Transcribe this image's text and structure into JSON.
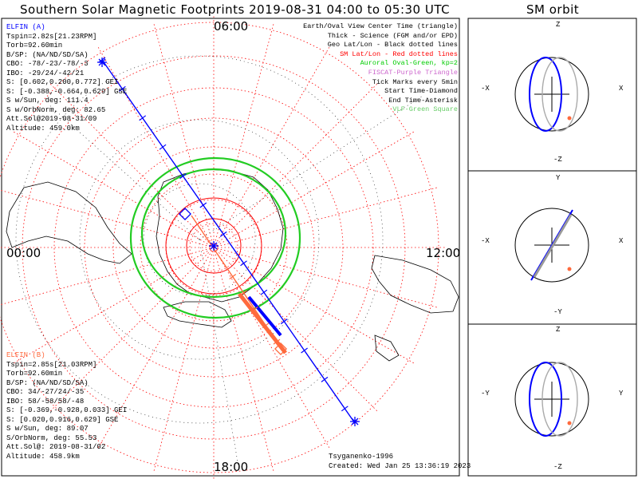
{
  "title": "Southern Solar Magnetic Footprints 2019-08-31 04:00 to 05:30 UTC",
  "orbit_title": "SM orbit",
  "hours": {
    "top": "06:00",
    "left": "00:00",
    "right": "12:00",
    "bottom": "18:00"
  },
  "elfin_a": {
    "name": "ELFIN (A)",
    "color": "#0000ff",
    "lines": [
      "Tspin=2.82s[21.23RPM]",
      "Torb=92.60min",
      "B/SP: (NA/ND/SD/SA)",
      "CBO: -78/-23/-78/-3",
      "IBO: -29/24/-42/21",
      "S: [0.602,0.200,0.772] GEI",
      "S: [-0.388,-0.664,0.629] GSE",
      "S w/Sun, deg: 111.4",
      "S w/OrbNorm, deg: 82.65",
      "Att.Sol@2019-08-31/09",
      "Altitude: 459.0km"
    ]
  },
  "elfin_b": {
    "name": "ELFIN (B)",
    "color": "#ff6a3d",
    "lines": [
      "Tspin=2.85s[21.03RPM]",
      "Torb=92.60min",
      "B/SP: (NA/ND/SD/SA)",
      "CBO: 34/-27/24/-35",
      "IBO: 58/-58/58/-48",
      "S: [-0.369,-0.928,0.033] GEI",
      "S: [0.020,0.916,0.629] GSE",
      "S w/Sun, deg: 89.07",
      "S/OrbNorm, deg: 55.53",
      "Att.Sol@: 2019-08-31/02",
      "Altitude: 458.9km"
    ]
  },
  "legend": [
    {
      "text": "Earth/Oval View Center Time (triangle)",
      "color": "#000000"
    },
    {
      "text": "Thick - Science (FGM and/or EPD)",
      "color": "#000000"
    },
    {
      "text": "Geo Lat/Lon - Black dotted lines",
      "color": "#000000"
    },
    {
      "text": "SM Lat/Lon - Red dotted lines",
      "color": "#ff0000"
    },
    {
      "text": "Auroral Oval-Green, kp=2",
      "color": "#00cc00"
    },
    {
      "text": "FISCAT-Purple Triangle",
      "color": "#cc66cc"
    },
    {
      "text": "Tick Marks every 5min",
      "color": "#000000"
    },
    {
      "text": "Start Time-Diamond",
      "color": "#000000"
    },
    {
      "text": "End Time-Asterisk",
      "color": "#000000"
    },
    {
      "text": "VLF-Green Square",
      "color": "#66cc66"
    }
  ],
  "credits": {
    "model": "Tsyganenko-1996",
    "created": "Created: Wed Jan 25 13:36:19 2023"
  },
  "panels": [
    {
      "top": "Z",
      "bottom": "-Z",
      "left": "-X",
      "right": "X"
    },
    {
      "top": "Y",
      "bottom": "-Y",
      "left": "-X",
      "right": "X"
    },
    {
      "top": "Z",
      "bottom": "-Z",
      "left": "-Y",
      "right": "Y"
    }
  ],
  "colors": {
    "red": "#ff0000",
    "green": "#22cc22",
    "blue": "#0000ff",
    "orange": "#ff6a3d"
  }
}
